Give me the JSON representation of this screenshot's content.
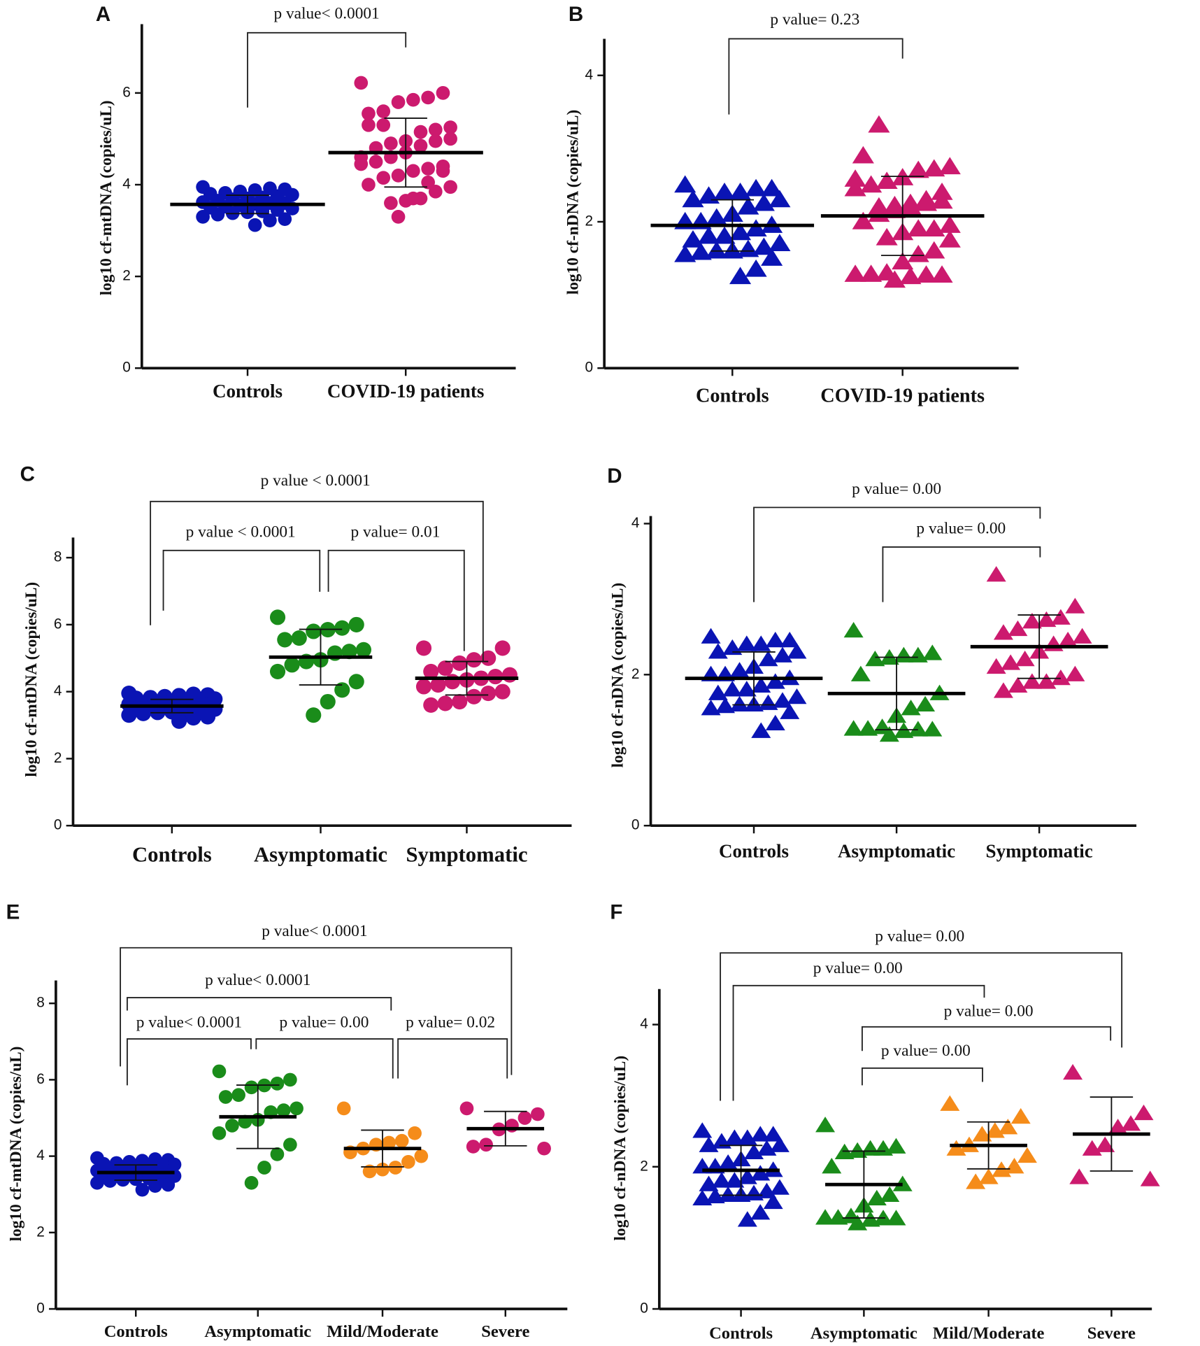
{
  "chart_data": [
    {
      "type": "dot",
      "panel": "A",
      "ylabel": "log10 cf-mtDNA (copies/uL)",
      "categories": [
        "Controls",
        "COVID-19 patients"
      ],
      "ylim": [
        0,
        7.5
      ],
      "yticks": [
        0,
        2,
        4,
        6
      ],
      "marker": "circle",
      "groups": [
        {
          "color": "#0a14b4",
          "values": [
            3.95,
            3.9,
            3.92,
            3.88,
            3.85,
            3.82,
            3.8,
            3.78,
            3.75,
            3.72,
            3.7,
            3.68,
            3.65,
            3.62,
            3.6,
            3.6,
            3.58,
            3.55,
            3.52,
            3.5,
            3.48,
            3.45,
            3.42,
            3.4,
            3.38,
            3.35,
            3.3,
            3.25,
            3.22,
            3.12
          ],
          "mean": 3.57,
          "sd": 0.2
        },
        {
          "color": "#cc1a6e",
          "values": [
            6.22,
            6.0,
            5.9,
            5.85,
            5.8,
            5.6,
            5.55,
            5.25,
            5.2,
            5.15,
            4.95,
            4.9,
            4.8,
            4.6,
            4.3,
            4.05,
            3.7,
            3.3,
            5.3,
            5.3,
            5.0,
            4.95,
            4.85,
            4.7,
            4.6,
            4.5,
            4.45,
            4.4,
            4.35,
            4.3,
            4.2,
            4.15,
            4.0,
            3.95,
            3.85,
            3.7,
            3.65,
            3.6
          ],
          "mean": 4.7,
          "sd": 0.75
        }
      ],
      "comparisons": [
        "p value< 0.0001"
      ]
    },
    {
      "type": "dot",
      "panel": "B",
      "ylabel": "log10 cf-nDNA (copies/uL)",
      "categories": [
        "Controls",
        "COVID-19 patients"
      ],
      "ylim": [
        0,
        4.5
      ],
      "yticks": [
        0,
        2,
        4
      ],
      "marker": "triangle",
      "groups": [
        {
          "color": "#0a14b4",
          "values": [
            2.5,
            2.45,
            2.45,
            2.4,
            2.4,
            2.35,
            2.3,
            2.3,
            2.25,
            2.2,
            2.1,
            2.05,
            2.0,
            2.0,
            1.95,
            1.9,
            1.85,
            1.8,
            1.8,
            1.75,
            1.7,
            1.65,
            1.62,
            1.6,
            1.6,
            1.58,
            1.55,
            1.5,
            1.35,
            1.25
          ],
          "mean": 1.95,
          "sd": 0.35
        },
        {
          "color": "#cc1a6e",
          "values": [
            2.58,
            2.28,
            2.25,
            2.25,
            2.22,
            2.2,
            2.0,
            1.75,
            1.6,
            1.55,
            1.45,
            1.3,
            1.28,
            1.28,
            1.27,
            1.27,
            1.25,
            1.2,
            3.32,
            2.9,
            2.75,
            2.72,
            2.7,
            2.6,
            2.55,
            2.5,
            2.45,
            2.4,
            2.3,
            2.2,
            2.15,
            2.1,
            2.0,
            1.95,
            1.9,
            1.9,
            1.85,
            1.78
          ],
          "mean": 2.08,
          "sd": 0.54
        }
      ],
      "comparisons": [
        "p value= 0.23"
      ]
    },
    {
      "type": "dot",
      "panel": "C",
      "ylabel": "log10 cf-mtDNA (copies/uL)",
      "categories": [
        "Controls",
        "Asymptomatic",
        "Symptomatic"
      ],
      "ylim": [
        0,
        8.6
      ],
      "yticks": [
        0,
        2,
        4,
        6,
        8
      ],
      "marker": "circle",
      "groups": [
        {
          "color": "#0a14b4",
          "values": [
            3.95,
            3.9,
            3.92,
            3.88,
            3.85,
            3.82,
            3.8,
            3.78,
            3.75,
            3.72,
            3.7,
            3.68,
            3.65,
            3.62,
            3.6,
            3.6,
            3.58,
            3.55,
            3.52,
            3.5,
            3.48,
            3.45,
            3.42,
            3.4,
            3.38,
            3.35,
            3.3,
            3.25,
            3.22,
            3.12
          ],
          "mean": 3.57,
          "sd": 0.2
        },
        {
          "color": "#1a8c1a",
          "values": [
            6.22,
            6.0,
            5.9,
            5.85,
            5.8,
            5.6,
            5.55,
            5.25,
            5.2,
            5.15,
            4.95,
            4.9,
            4.8,
            4.6,
            4.3,
            4.05,
            3.7,
            3.3
          ],
          "mean": 5.03,
          "sd": 0.83
        },
        {
          "color": "#cc1a6e",
          "values": [
            5.3,
            5.3,
            5.0,
            4.95,
            4.85,
            4.7,
            4.6,
            4.5,
            4.45,
            4.4,
            4.35,
            4.3,
            4.2,
            4.15,
            4.0,
            3.95,
            3.85,
            3.7,
            3.65,
            3.6
          ],
          "mean": 4.4,
          "sd": 0.5
        }
      ],
      "comparisons": [
        "p value < 0.0001",
        "p value < 0.0001",
        "p value= 0.01"
      ]
    },
    {
      "type": "dot",
      "panel": "D",
      "ylabel": "log10 cf-nDNA (copies/uL)",
      "categories": [
        "Controls",
        "Asymptomatic",
        "Symptomatic"
      ],
      "ylim": [
        0,
        4.1
      ],
      "yticks": [
        0,
        2,
        4
      ],
      "marker": "triangle",
      "groups": [
        {
          "color": "#0a14b4",
          "values": [
            2.5,
            2.45,
            2.45,
            2.4,
            2.4,
            2.35,
            2.3,
            2.3,
            2.25,
            2.2,
            2.1,
            2.05,
            2.0,
            2.0,
            1.95,
            1.9,
            1.85,
            1.8,
            1.8,
            1.75,
            1.7,
            1.65,
            1.62,
            1.6,
            1.6,
            1.58,
            1.55,
            1.5,
            1.35,
            1.25
          ],
          "mean": 1.95,
          "sd": 0.35
        },
        {
          "color": "#1a8c1a",
          "values": [
            2.58,
            2.28,
            2.25,
            2.25,
            2.22,
            2.2,
            2.0,
            1.75,
            1.6,
            1.55,
            1.45,
            1.3,
            1.28,
            1.28,
            1.27,
            1.27,
            1.25,
            1.2
          ],
          "mean": 1.75,
          "sd": 0.48
        },
        {
          "color": "#cc1a6e",
          "values": [
            3.32,
            2.9,
            2.75,
            2.72,
            2.7,
            2.6,
            2.55,
            2.5,
            2.45,
            2.4,
            2.3,
            2.2,
            2.15,
            2.1,
            2.0,
            1.95,
            1.9,
            1.9,
            1.85,
            1.78
          ],
          "mean": 2.37,
          "sd": 0.42
        }
      ],
      "comparisons": [
        "p value= 0.00",
        "p value= 0.00"
      ]
    },
    {
      "type": "dot",
      "panel": "E",
      "ylabel": "log10 cf-mtDNA (copies/uL)",
      "categories": [
        "Controls",
        "Asymptomatic",
        "Mild/Moderate",
        "Severe"
      ],
      "ylim": [
        0,
        8.6
      ],
      "yticks": [
        0,
        2,
        4,
        6,
        8
      ],
      "marker": "circle",
      "groups": [
        {
          "color": "#0a14b4",
          "values": [
            3.95,
            3.9,
            3.92,
            3.88,
            3.85,
            3.82,
            3.8,
            3.78,
            3.75,
            3.72,
            3.7,
            3.68,
            3.65,
            3.62,
            3.6,
            3.6,
            3.58,
            3.55,
            3.52,
            3.5,
            3.48,
            3.45,
            3.42,
            3.4,
            3.38,
            3.35,
            3.3,
            3.25,
            3.22,
            3.12
          ],
          "mean": 3.57,
          "sd": 0.2
        },
        {
          "color": "#1a8c1a",
          "values": [
            6.22,
            6.0,
            5.9,
            5.85,
            5.8,
            5.6,
            5.55,
            5.25,
            5.2,
            5.15,
            4.95,
            4.9,
            4.8,
            4.6,
            4.3,
            4.05,
            3.7,
            3.3
          ],
          "mean": 5.03,
          "sd": 0.83
        },
        {
          "color": "#f58c1a",
          "values": [
            5.25,
            4.6,
            4.4,
            4.35,
            4.3,
            4.2,
            4.1,
            4.0,
            3.85,
            3.7,
            3.65,
            3.6
          ],
          "mean": 4.2,
          "sd": 0.48
        },
        {
          "color": "#cc1a6e",
          "values": [
            5.25,
            5.1,
            5.0,
            4.8,
            4.7,
            4.3,
            4.25,
            4.2
          ],
          "mean": 4.72,
          "sd": 0.45
        }
      ],
      "comparisons": [
        "p value< 0.0001",
        "p value< 0.0001",
        "p value< 0.0001",
        "p value= 0.00",
        "p value= 0.02"
      ]
    },
    {
      "type": "dot",
      "panel": "F",
      "ylabel": "log10 cf-nDNA (copies/uL)",
      "categories": [
        "Controls",
        "Asymptomatic",
        "Mild/Moderate",
        "Severe"
      ],
      "ylim": [
        0,
        4.5
      ],
      "yticks": [
        0,
        2,
        4
      ],
      "marker": "triangle",
      "groups": [
        {
          "color": "#0a14b4",
          "values": [
            2.5,
            2.45,
            2.45,
            2.4,
            2.4,
            2.35,
            2.3,
            2.3,
            2.25,
            2.2,
            2.1,
            2.05,
            2.0,
            2.0,
            1.95,
            1.9,
            1.85,
            1.8,
            1.8,
            1.75,
            1.7,
            1.65,
            1.62,
            1.6,
            1.6,
            1.58,
            1.55,
            1.5,
            1.35,
            1.25
          ],
          "mean": 1.95,
          "sd": 0.35
        },
        {
          "color": "#1a8c1a",
          "values": [
            2.58,
            2.28,
            2.25,
            2.25,
            2.22,
            2.2,
            2.0,
            1.75,
            1.6,
            1.55,
            1.45,
            1.3,
            1.28,
            1.28,
            1.27,
            1.27,
            1.25,
            1.2
          ],
          "mean": 1.75,
          "sd": 0.47
        },
        {
          "color": "#f58c1a",
          "values": [
            2.88,
            2.7,
            2.55,
            2.5,
            2.45,
            2.3,
            2.25,
            2.15,
            2.0,
            1.95,
            1.85,
            1.78
          ],
          "mean": 2.3,
          "sd": 0.33
        },
        {
          "color": "#cc1a6e",
          "values": [
            3.32,
            2.75,
            2.6,
            2.55,
            2.3,
            2.25,
            1.85,
            1.82
          ],
          "mean": 2.46,
          "sd": 0.52
        }
      ],
      "comparisons": [
        "p value= 0.00",
        "p value= 0.00",
        "p value= 0.00",
        "p value= 0.00"
      ]
    }
  ]
}
